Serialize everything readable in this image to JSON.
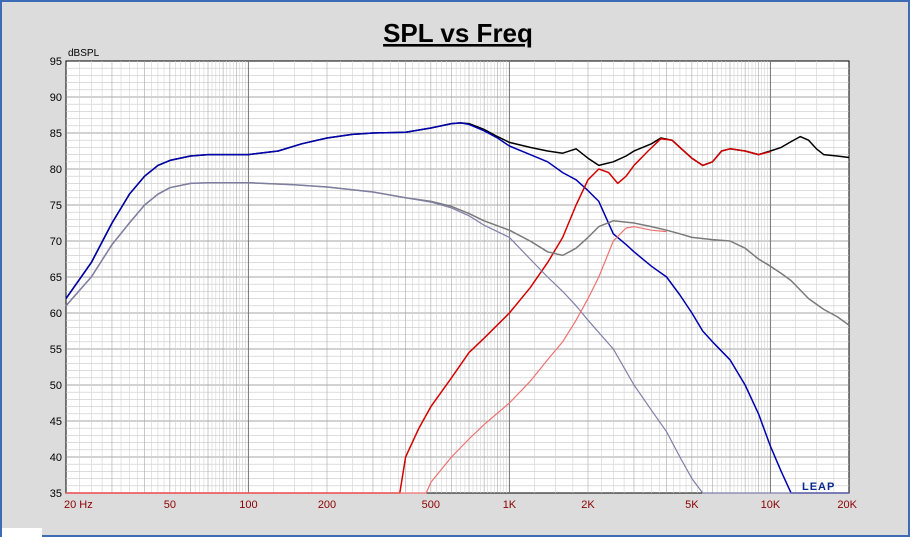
{
  "chart_data": {
    "type": "line",
    "title": "SPL vs Freq",
    "ylabel": "dBSPL",
    "xlabel": "",
    "x_scale": "log",
    "xlim": [
      20,
      20000
    ],
    "ylim": [
      35,
      95
    ],
    "grid": true,
    "y_ticks": [
      "35",
      "40",
      "45",
      "50",
      "55",
      "60",
      "65",
      "70",
      "75",
      "80",
      "85",
      "90",
      "95"
    ],
    "x_tick_labels": [
      {
        "value": 20,
        "label": "20  Hz"
      },
      {
        "value": 50,
        "label": "50"
      },
      {
        "value": 100,
        "label": "100"
      },
      {
        "value": 200,
        "label": "200"
      },
      {
        "value": 500,
        "label": "500"
      },
      {
        "value": 1000,
        "label": "1K"
      },
      {
        "value": 2000,
        "label": "2K"
      },
      {
        "value": 5000,
        "label": "5K"
      },
      {
        "value": 10000,
        "label": "10K"
      },
      {
        "value": 20000,
        "label": "20K"
      }
    ],
    "logo": "LEAP",
    "series": [
      {
        "color": "#000000",
        "points": [
          [
            20,
            62
          ],
          [
            25,
            67
          ],
          [
            30,
            72.5
          ],
          [
            35,
            76.5
          ],
          [
            40,
            79
          ],
          [
            45,
            80.5
          ],
          [
            50,
            81.2
          ],
          [
            60,
            81.8
          ],
          [
            70,
            82
          ],
          [
            100,
            82
          ],
          [
            130,
            82.5
          ],
          [
            160,
            83.5
          ],
          [
            200,
            84.3
          ],
          [
            250,
            84.8
          ],
          [
            300,
            85
          ],
          [
            400,
            85.1
          ],
          [
            500,
            85.7
          ],
          [
            600,
            86.3
          ],
          [
            650,
            86.4
          ],
          [
            700,
            86.3
          ],
          [
            800,
            85.5
          ],
          [
            900,
            84.5
          ],
          [
            1000,
            83.7
          ],
          [
            1200,
            83
          ],
          [
            1400,
            82.5
          ],
          [
            1600,
            82.2
          ],
          [
            1800,
            82.8
          ],
          [
            2000,
            81.5
          ],
          [
            2200,
            80.5
          ],
          [
            2500,
            81
          ],
          [
            2800,
            81.8
          ],
          [
            3000,
            82.5
          ],
          [
            3500,
            83.5
          ],
          [
            3800,
            84.3
          ],
          [
            4200,
            84
          ],
          [
            4500,
            83
          ],
          [
            5000,
            81.5
          ],
          [
            5500,
            80.5
          ],
          [
            6000,
            81
          ],
          [
            6500,
            82.5
          ],
          [
            7000,
            82.8
          ],
          [
            8000,
            82.5
          ],
          [
            9000,
            82
          ],
          [
            10000,
            82.5
          ],
          [
            11000,
            83
          ],
          [
            12000,
            83.8
          ],
          [
            13000,
            84.5
          ],
          [
            14000,
            84
          ],
          [
            15000,
            82.8
          ],
          [
            16000,
            82
          ],
          [
            18000,
            81.8
          ],
          [
            20000,
            81.6
          ]
        ]
      },
      {
        "color": "#0000b0",
        "points": [
          [
            20,
            62
          ],
          [
            25,
            67
          ],
          [
            30,
            72.5
          ],
          [
            35,
            76.5
          ],
          [
            40,
            79
          ],
          [
            45,
            80.5
          ],
          [
            50,
            81.2
          ],
          [
            60,
            81.8
          ],
          [
            70,
            82
          ],
          [
            100,
            82
          ],
          [
            130,
            82.5
          ],
          [
            160,
            83.5
          ],
          [
            200,
            84.3
          ],
          [
            250,
            84.8
          ],
          [
            300,
            85
          ],
          [
            400,
            85.1
          ],
          [
            500,
            85.7
          ],
          [
            600,
            86.3
          ],
          [
            650,
            86.4
          ],
          [
            700,
            86.2
          ],
          [
            800,
            85.3
          ],
          [
            900,
            84.3
          ],
          [
            1000,
            83.2
          ],
          [
            1200,
            82
          ],
          [
            1400,
            81
          ],
          [
            1600,
            79.5
          ],
          [
            1800,
            78.5
          ],
          [
            2000,
            77
          ],
          [
            2200,
            75.5
          ],
          [
            2500,
            71
          ],
          [
            2800,
            69.5
          ],
          [
            3000,
            68.5
          ],
          [
            3500,
            66.5
          ],
          [
            4000,
            65
          ],
          [
            4500,
            62.5
          ],
          [
            5000,
            60
          ],
          [
            5500,
            57.5
          ],
          [
            6000,
            56
          ],
          [
            7000,
            53.5
          ],
          [
            8000,
            50
          ],
          [
            9000,
            46
          ],
          [
            10000,
            41.5
          ],
          [
            11000,
            38
          ],
          [
            12000,
            35
          ],
          [
            20000,
            35
          ]
        ]
      },
      {
        "color": "#d40000",
        "points": [
          [
            20,
            35
          ],
          [
            380,
            35
          ],
          [
            400,
            40
          ],
          [
            450,
            44
          ],
          [
            500,
            47
          ],
          [
            600,
            51
          ],
          [
            700,
            54.5
          ],
          [
            800,
            56.5
          ],
          [
            1000,
            60
          ],
          [
            1200,
            63.5
          ],
          [
            1400,
            67
          ],
          [
            1600,
            70.5
          ],
          [
            1800,
            75
          ],
          [
            2000,
            78.5
          ],
          [
            2200,
            80
          ],
          [
            2400,
            79.5
          ],
          [
            2600,
            78
          ],
          [
            2800,
            79
          ],
          [
            3000,
            80.5
          ],
          [
            3400,
            82.5
          ],
          [
            3800,
            84.2
          ],
          [
            4200,
            84
          ],
          [
            4500,
            83
          ],
          [
            5000,
            81.5
          ],
          [
            5500,
            80.5
          ],
          [
            6000,
            81
          ],
          [
            6500,
            82.5
          ],
          [
            7000,
            82.8
          ],
          [
            8000,
            82.5
          ],
          [
            9000,
            82
          ],
          [
            10000,
            82.4
          ]
        ]
      },
      {
        "color": "#7a7a7a",
        "points": [
          [
            20,
            61
          ],
          [
            25,
            65
          ],
          [
            30,
            69.5
          ],
          [
            35,
            72.5
          ],
          [
            40,
            75
          ],
          [
            45,
            76.5
          ],
          [
            50,
            77.4
          ],
          [
            60,
            78
          ],
          [
            70,
            78.1
          ],
          [
            100,
            78.1
          ],
          [
            150,
            77.8
          ],
          [
            200,
            77.5
          ],
          [
            300,
            76.8
          ],
          [
            400,
            76
          ],
          [
            500,
            75.5
          ],
          [
            600,
            74.8
          ],
          [
            700,
            73.8
          ],
          [
            800,
            72.8
          ],
          [
            1000,
            71.5
          ],
          [
            1200,
            70
          ],
          [
            1400,
            68.5
          ],
          [
            1600,
            68
          ],
          [
            1800,
            69
          ],
          [
            2000,
            70.5
          ],
          [
            2200,
            72
          ],
          [
            2500,
            72.8
          ],
          [
            3000,
            72.5
          ],
          [
            3500,
            72
          ],
          [
            4000,
            71.5
          ],
          [
            4500,
            71
          ],
          [
            5000,
            70.5
          ],
          [
            6000,
            70.2
          ],
          [
            7000,
            70
          ],
          [
            8000,
            69
          ],
          [
            9000,
            67.5
          ],
          [
            10000,
            66.5
          ],
          [
            11000,
            65.5
          ],
          [
            12000,
            64.5
          ],
          [
            14000,
            62
          ],
          [
            16000,
            60.5
          ],
          [
            18000,
            59.5
          ],
          [
            20000,
            58.3
          ]
        ]
      },
      {
        "color": "#7f7fa8",
        "points": [
          [
            20,
            61
          ],
          [
            25,
            65
          ],
          [
            30,
            69.5
          ],
          [
            35,
            72.5
          ],
          [
            40,
            75
          ],
          [
            45,
            76.5
          ],
          [
            50,
            77.4
          ],
          [
            60,
            78
          ],
          [
            70,
            78.1
          ],
          [
            100,
            78.1
          ],
          [
            150,
            77.8
          ],
          [
            200,
            77.5
          ],
          [
            300,
            76.8
          ],
          [
            400,
            76
          ],
          [
            500,
            75.4
          ],
          [
            600,
            74.6
          ],
          [
            700,
            73.5
          ],
          [
            800,
            72.2
          ],
          [
            1000,
            70.5
          ],
          [
            1200,
            67.5
          ],
          [
            1400,
            65
          ],
          [
            1600,
            63
          ],
          [
            1800,
            61
          ],
          [
            2000,
            59
          ],
          [
            2500,
            55
          ],
          [
            3000,
            50
          ],
          [
            3500,
            46.5
          ],
          [
            4000,
            43.5
          ],
          [
            4500,
            40
          ],
          [
            5000,
            37
          ],
          [
            5500,
            35
          ],
          [
            20000,
            35
          ]
        ]
      },
      {
        "color": "#f07070",
        "points": [
          [
            20,
            35
          ],
          [
            480,
            35
          ],
          [
            500,
            36.5
          ],
          [
            600,
            40
          ],
          [
            700,
            42.5
          ],
          [
            800,
            44.5
          ],
          [
            1000,
            47.5
          ],
          [
            1200,
            50.5
          ],
          [
            1400,
            53.5
          ],
          [
            1600,
            56
          ],
          [
            1800,
            59
          ],
          [
            2000,
            62
          ],
          [
            2200,
            65
          ],
          [
            2500,
            70
          ],
          [
            2800,
            71.8
          ],
          [
            3000,
            72
          ],
          [
            3500,
            71.5
          ],
          [
            4000,
            71.3
          ]
        ]
      }
    ]
  }
}
